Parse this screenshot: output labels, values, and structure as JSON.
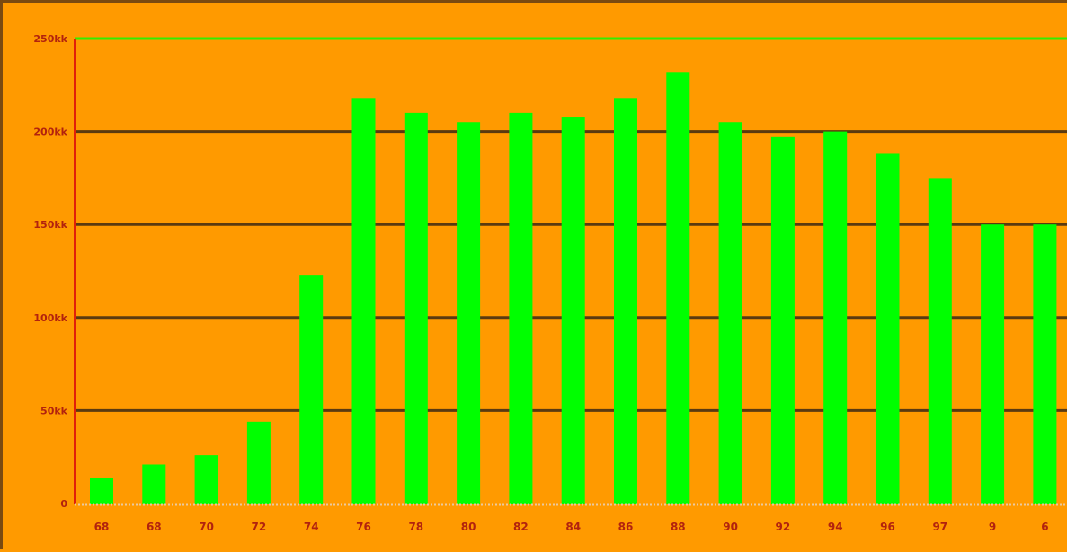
{
  "chart_data": {
    "type": "bar",
    "title": "",
    "xlabel": "",
    "ylabel": "",
    "categories": [
      "68",
      "68",
      "70",
      "72",
      "74",
      "76",
      "78",
      "80",
      "82",
      "84",
      "86",
      "88",
      "90",
      "92",
      "94",
      "96",
      "97",
      "9",
      "6"
    ],
    "values": [
      14,
      21,
      26,
      44,
      123,
      218,
      210,
      205,
      210,
      208,
      218,
      232,
      205,
      197,
      200,
      188,
      175,
      150,
      150
    ],
    "ylim": [
      0,
      250
    ],
    "yticks": [
      {
        "value": 0,
        "label": "0"
      },
      {
        "value": 50,
        "label": "50kk"
      },
      {
        "value": 100,
        "label": "100kk"
      },
      {
        "value": 150,
        "label": "150kk"
      },
      {
        "value": 200,
        "label": "200kk"
      },
      {
        "value": 250,
        "label": "250kk"
      }
    ],
    "grid": true,
    "legend": "none",
    "colors": {
      "background": "#ff9a00",
      "bar": "#00ff00",
      "gridline": "#5a3a10",
      "top_line": "#33ee00",
      "y_axis": "#e0200a",
      "baseline": "#e9c9a0",
      "label": "#b2220e"
    }
  }
}
